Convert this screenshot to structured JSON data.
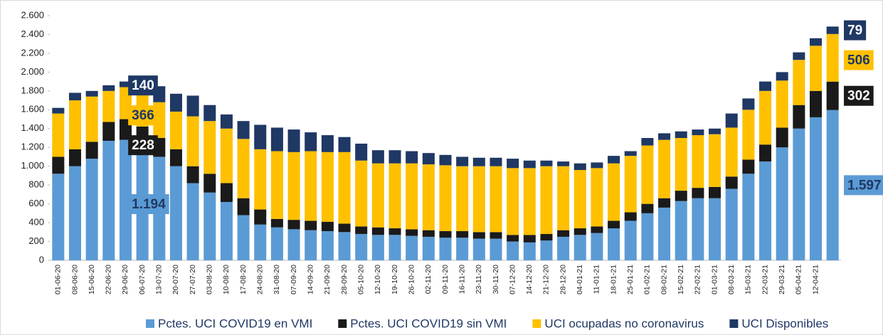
{
  "chart_data": {
    "type": "stacked_bar",
    "categories": [
      "01-06-20",
      "08-06-20",
      "15-06-20",
      "22-06-20",
      "29-06-20",
      "06-07-20",
      "13-07-20",
      "20-07-20",
      "27-07-20",
      "03-08-20",
      "10-08-20",
      "17-08-20",
      "24-08-20",
      "31-08-20",
      "07-09-20",
      "14-09-20",
      "21-09-20",
      "28-09-20",
      "05-10-20",
      "12-10-20",
      "19-10-20",
      "26-10-20",
      "02-11-20",
      "09-11-20",
      "16-11-20",
      "23-11-20",
      "30-11-20",
      "07-12-20",
      "14-12-20",
      "21-12-20",
      "28-12-20",
      "04-01-21",
      "11-01-21",
      "18-01-21",
      "25-01-21",
      "01-02-21",
      "08-02-21",
      "15-02-21",
      "22-02-21",
      "01-03-21",
      "08-03-21",
      "15-03-21",
      "22-03-21",
      "29-03-21",
      "05-04-21",
      "12-04-21",
      null
    ],
    "series": [
      {
        "name": "Pctes. UCI COVID19 en VMI",
        "color": "#5b9bd5",
        "label_text_color": "#1f3864",
        "values": [
          920,
          1000,
          1080,
          1270,
          1280,
          1194,
          1100,
          1000,
          820,
          720,
          620,
          480,
          380,
          350,
          330,
          320,
          310,
          300,
          280,
          270,
          270,
          260,
          250,
          240,
          240,
          230,
          230,
          200,
          190,
          210,
          250,
          270,
          290,
          340,
          420,
          500,
          560,
          630,
          660,
          660,
          760,
          920,
          1050,
          1200,
          1400,
          1520,
          1597
        ],
        "value_labels": [
          null,
          null,
          null,
          null,
          null,
          "1.194",
          null,
          null,
          null,
          null,
          null,
          null,
          null,
          null,
          null,
          null,
          null,
          null,
          null,
          null,
          null,
          null,
          null,
          null,
          null,
          null,
          null,
          null,
          null,
          null,
          null,
          null,
          null,
          null,
          null,
          null,
          null,
          null,
          null,
          null,
          null,
          null,
          null,
          null,
          null,
          null,
          "1.597"
        ]
      },
      {
        "name": "Pctes. UCI COVID19 sin VMI",
        "color": "#1a1a1a",
        "label_text_color": "#ffffff",
        "values": [
          180,
          180,
          180,
          200,
          220,
          228,
          200,
          180,
          180,
          200,
          200,
          180,
          160,
          90,
          100,
          100,
          100,
          90,
          80,
          80,
          70,
          70,
          70,
          70,
          70,
          70,
          70,
          70,
          80,
          70,
          70,
          70,
          70,
          80,
          90,
          100,
          100,
          110,
          110,
          120,
          130,
          150,
          180,
          210,
          250,
          280,
          302
        ],
        "value_labels": [
          null,
          null,
          null,
          null,
          null,
          "228",
          null,
          null,
          null,
          null,
          null,
          null,
          null,
          null,
          null,
          null,
          null,
          null,
          null,
          null,
          null,
          null,
          null,
          null,
          null,
          null,
          null,
          null,
          null,
          null,
          null,
          null,
          null,
          null,
          null,
          null,
          null,
          null,
          null,
          null,
          null,
          null,
          null,
          null,
          null,
          null,
          "302"
        ]
      },
      {
        "name": "UCI ocupadas no coronavirus",
        "color": "#ffc000",
        "label_text_color": "#1f3864",
        "values": [
          460,
          520,
          480,
          330,
          340,
          366,
          380,
          400,
          530,
          560,
          580,
          630,
          640,
          720,
          720,
          740,
          740,
          760,
          700,
          680,
          690,
          700,
          700,
          700,
          690,
          700,
          700,
          710,
          710,
          720,
          680,
          620,
          620,
          610,
          600,
          620,
          620,
          560,
          560,
          560,
          520,
          530,
          570,
          500,
          480,
          480,
          506
        ],
        "value_labels": [
          null,
          null,
          null,
          null,
          null,
          "366",
          null,
          null,
          null,
          null,
          null,
          null,
          null,
          null,
          null,
          null,
          null,
          null,
          null,
          null,
          null,
          null,
          null,
          null,
          null,
          null,
          null,
          null,
          null,
          null,
          null,
          null,
          null,
          null,
          null,
          null,
          null,
          null,
          null,
          null,
          null,
          null,
          null,
          null,
          null,
          null,
          "506"
        ]
      },
      {
        "name": "UCI Disponibles",
        "color": "#1f3864",
        "label_text_color": "#ffffff",
        "values": [
          60,
          80,
          60,
          60,
          60,
          140,
          170,
          190,
          220,
          170,
          150,
          190,
          260,
          250,
          240,
          200,
          180,
          160,
          180,
          140,
          140,
          130,
          120,
          110,
          100,
          90,
          90,
          100,
          80,
          60,
          50,
          70,
          60,
          80,
          50,
          80,
          70,
          70,
          60,
          60,
          150,
          120,
          100,
          90,
          80,
          80,
          79
        ],
        "value_labels": [
          null,
          null,
          null,
          null,
          null,
          "140",
          null,
          null,
          null,
          null,
          null,
          null,
          null,
          null,
          null,
          null,
          null,
          null,
          null,
          null,
          null,
          null,
          null,
          null,
          null,
          null,
          null,
          null,
          null,
          null,
          null,
          null,
          null,
          null,
          null,
          null,
          null,
          null,
          null,
          null,
          null,
          null,
          null,
          null,
          null,
          null,
          "79"
        ]
      }
    ],
    "ylim": [
      0,
      2600
    ],
    "yticks": [
      0,
      200,
      400,
      600,
      800,
      {
        "value": 1000,
        "label": "1.000"
      },
      {
        "value": 1200,
        "label": "1.200"
      },
      {
        "value": 1400,
        "label": "1.400"
      },
      {
        "value": 1600,
        "label": "1.600"
      },
      {
        "value": 1800,
        "label": "1.800"
      },
      {
        "value": 2000,
        "label": "2.000"
      },
      {
        "value": 2200,
        "label": "2.200"
      },
      {
        "value": 2400,
        "label": "2.400"
      },
      {
        "value": 2600,
        "label": "2.600"
      }
    ],
    "grid": false,
    "legend": "bottom"
  }
}
